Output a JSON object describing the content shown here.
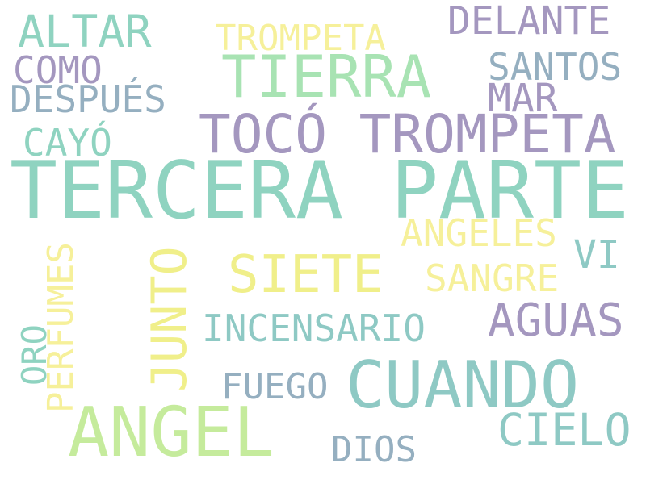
{
  "cloud": {
    "background": "#ffffff",
    "palette": {
      "teal": "#8fd3c0",
      "mint": "#a8e3b3",
      "lightgreen": "#c5eb9c",
      "yellow": "#f0ef8a",
      "paleyellow": "#f6f09a",
      "lavender": "#a497bf",
      "steelblue": "#95afc0",
      "seafoam": "#8ec9c4"
    },
    "words": [
      {
        "id": "tercera-parte",
        "text": "TERCERA PARTE",
        "color": "teal"
      },
      {
        "id": "toco-trompeta",
        "text": "TOCÓ TROMPETA",
        "color": "lavender"
      },
      {
        "id": "cuando",
        "text": "CUANDO",
        "color": "seafoam"
      },
      {
        "id": "angel",
        "text": "ANGEL",
        "color": "lightgreen"
      },
      {
        "id": "tierra",
        "text": "TIERRA",
        "color": "mint"
      },
      {
        "id": "siete",
        "text": "SIETE",
        "color": "yellow"
      },
      {
        "id": "junto",
        "text": "JUNTO",
        "color": "yellow"
      },
      {
        "id": "aguas",
        "text": "AGUAS",
        "color": "lavender"
      },
      {
        "id": "cielo",
        "text": "CIELO",
        "color": "seafoam"
      },
      {
        "id": "altar",
        "text": "ALTAR",
        "color": "teal"
      },
      {
        "id": "delante",
        "text": "DELANTE",
        "color": "lavender"
      },
      {
        "id": "trompeta",
        "text": "TROMPETA",
        "color": "paleyellow"
      },
      {
        "id": "santos",
        "text": "SANTOS",
        "color": "steelblue"
      },
      {
        "id": "mar",
        "text": "MAR",
        "color": "lavender"
      },
      {
        "id": "como",
        "text": "COMO",
        "color": "lavender"
      },
      {
        "id": "despues",
        "text": "DESPUÉS",
        "color": "steelblue"
      },
      {
        "id": "cayo",
        "text": "CAYÓ",
        "color": "teal"
      },
      {
        "id": "angeles",
        "text": "ANGELES",
        "color": "paleyellow"
      },
      {
        "id": "vi",
        "text": "VI",
        "color": "seafoam"
      },
      {
        "id": "sangre",
        "text": "SANGRE",
        "color": "paleyellow"
      },
      {
        "id": "incensario",
        "text": "INCENSARIO",
        "color": "seafoam"
      },
      {
        "id": "fuego",
        "text": "FUEGO",
        "color": "steelblue"
      },
      {
        "id": "dios",
        "text": "DIOS",
        "color": "steelblue"
      },
      {
        "id": "perfumes",
        "text": "PERFUMES",
        "color": "paleyellow"
      },
      {
        "id": "oro",
        "text": "ORO",
        "color": "teal"
      }
    ]
  }
}
